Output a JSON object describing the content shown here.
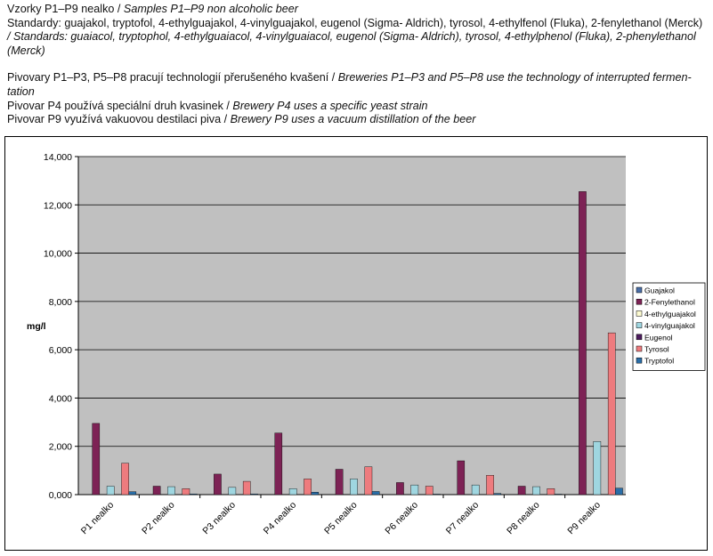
{
  "header": {
    "line1_cz": "Vzorky P1–P9 nealko",
    "sep": " / ",
    "line1_en": "Samples P1–P9 non alcoholic beer",
    "line2_cz": "Standardy: guajakol, tryptofol, 4-ethylguajakol, 4-vinylguajakol, eugenol (Sigma- Aldrich), tyrosol, 4-ethylfenol (Fluka), 2-fenylethanol (Merck)",
    "line2_en": "/ Standards: guaiacol, tryptophol, 4-ethylguaiacol, 4-vinylguaiacol, eugenol (Sigma- Aldrich), tyrosol, 4-ethylphenol (Fluka), 2-phenylethanol (Merck)",
    "line3_cz": "Pivovary P1–P3, P5–P8 pracují technologií přerušeného kvašení",
    "line3_en": "Breweries P1–P3 and P5–P8 use the technology of interrupted fermen-tation",
    "line4_cz": "Pivovar P4 používá speciální druh kvasinek",
    "line4_en": "Brewery P4 uses a specific yeast strain",
    "line5_cz": "Pivovar P9 využívá vakuovou destilaci piva",
    "line5_en": "Brewery P9 uses a vacuum distillation of the beer"
  },
  "chart_data": {
    "type": "bar",
    "ylabel": "mg/l",
    "ylim": [
      0,
      14000
    ],
    "yticks": [
      0,
      2000,
      4000,
      6000,
      8000,
      10000,
      12000,
      14000
    ],
    "ytick_labels": [
      "0,000",
      "2,000",
      "4,000",
      "6,000",
      "8,000",
      "10,000",
      "12,000",
      "14,000"
    ],
    "grid": "horizontal",
    "legend": "right",
    "categories": [
      "P1 nealko",
      "P2 nealko",
      "P3 nealko",
      "P4 nealko",
      "P5 nealko",
      "P6 nealko",
      "P7 nealko",
      "P8 nealko",
      "P9 nealko"
    ],
    "series": [
      {
        "name": "Guajakol",
        "color": "#4a6fa8",
        "values": [
          0,
          0,
          0,
          0,
          0,
          0,
          0,
          0,
          0
        ]
      },
      {
        "name": "2-Fenylethanol",
        "color": "#7d2255",
        "values": [
          2950,
          350,
          850,
          2550,
          1050,
          500,
          1400,
          350,
          12550
        ]
      },
      {
        "name": "4-ethylguajakol",
        "color": "#fdfbd0",
        "values": [
          0,
          0,
          0,
          0,
          0,
          0,
          0,
          0,
          0
        ]
      },
      {
        "name": "4-vinylguajakol",
        "color": "#9fd6e0",
        "values": [
          350,
          330,
          300,
          250,
          650,
          400,
          400,
          330,
          2200
        ]
      },
      {
        "name": "Eugenol",
        "color": "#4d1c5e",
        "values": [
          0,
          0,
          0,
          0,
          0,
          0,
          0,
          0,
          0
        ]
      },
      {
        "name": "Tyrosol",
        "color": "#ee7b7e",
        "values": [
          1300,
          250,
          550,
          650,
          1150,
          350,
          800,
          250,
          6700
        ]
      },
      {
        "name": "Tryptofol",
        "color": "#2a6ea8",
        "values": [
          120,
          30,
          30,
          100,
          130,
          20,
          50,
          20,
          270
        ]
      }
    ]
  }
}
